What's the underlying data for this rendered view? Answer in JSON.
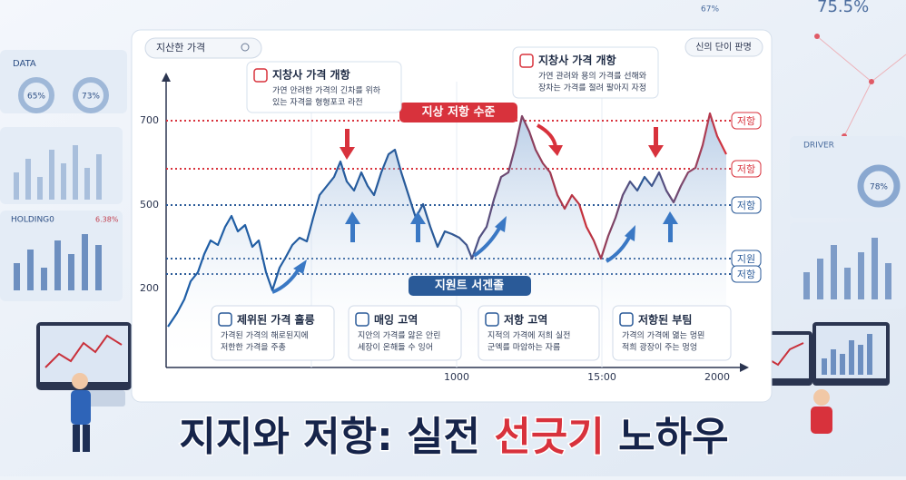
{
  "search": "지산한 가격",
  "top_right_badge": "신의 단이 판명",
  "banner_top": "지상 저항 수준",
  "banner_bottom": "지원트 서겐졸",
  "y_labels": [
    "700",
    "500",
    "200"
  ],
  "x_labels": [
    "1000",
    "15:00",
    "2000"
  ],
  "level_labels": [
    "저항",
    "저항",
    "저항",
    "지원",
    "저항"
  ],
  "callouts": [
    {
      "title": "지창사 가격 개항",
      "text": [
        "가연 안려한 가격의 긴차를 위하",
        "있는 자격을 형형포코 라전"
      ]
    },
    {
      "title": "지창사 가격 개항",
      "text": [
        "가연 관려와 용의 가격를 선해와",
        "장차는 가격를 절려 팔아지 자정"
      ]
    }
  ],
  "cards": [
    {
      "title": "제위된 가격 흘릉",
      "text": [
        "가격된 가격의 해로된지에",
        "저한한 가격을 주총"
      ]
    },
    {
      "title": "매잉 고역",
      "text": [
        "지안의 가격를 앓은 안린",
        "세장이 온해들 수 잉어"
      ]
    },
    {
      "title": "저항 고역",
      "text": [
        "지적의 가격에 저희 실전",
        "군엑를 마암하는 자름"
      ]
    },
    {
      "title": "저항된 부팀",
      "text": [
        "가격의 가격에 엶는 멍믠",
        "적희 광장이 주는 멍엉"
      ]
    }
  ],
  "headline": [
    "지지와 저항: 실전 ",
    "선긋기",
    " 노하우"
  ],
  "side": {
    "data_label": "DATA",
    "pcts": [
      "65%",
      "73%"
    ],
    "holding": "HOLDING0",
    "holding_pct": "6.38%",
    "top_right_pct": "75.5%",
    "top_pct": "67%",
    "driver": "DRIVER",
    "driver_pct": "78%"
  }
}
